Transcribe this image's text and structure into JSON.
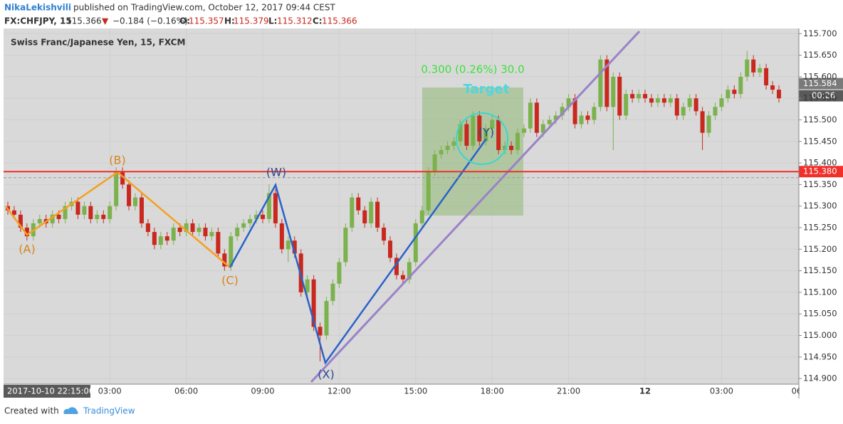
{
  "header": {
    "author": "NikaLekishvili",
    "published": "published on TradingView.com, October 12, 2017 09:44 CEST",
    "symbol": "FX:CHFJPY, 15",
    "last": "115.366",
    "arrow": "▼",
    "change": "−0.184 (−0.16%)",
    "open_label": "O:",
    "open": "115.357",
    "high_label": "H:",
    "high": "115.379",
    "low_label": "L:",
    "low": "115.312",
    "close_label": "C:",
    "close": "115.366"
  },
  "chart_data": {
    "type": "candlestick",
    "title": "Swiss Franc/Japanese Yen, 15, FXCM",
    "open": [
      115.3,
      115.29,
      115.28,
      115.25,
      115.23,
      115.26,
      115.27,
      115.26,
      115.28,
      115.27,
      115.3,
      115.31,
      115.28,
      115.3,
      115.27,
      115.28,
      115.27,
      115.3,
      115.38,
      115.35,
      115.3,
      115.32,
      115.26,
      115.24,
      115.21,
      115.23,
      115.22,
      115.25,
      115.24,
      115.26,
      115.24,
      115.25,
      115.23,
      115.24,
      115.19,
      115.16,
      115.23,
      115.25,
      115.26,
      115.27,
      115.28,
      115.27,
      115.33,
      115.26,
      115.2,
      115.22,
      115.19,
      115.1,
      115.13,
      115.02,
      115.0,
      115.08,
      115.12,
      115.17,
      115.25,
      115.32,
      115.29,
      115.26,
      115.31,
      115.25,
      115.22,
      115.18,
      115.14,
      115.13,
      115.17,
      115.26,
      115.29,
      115.38,
      115.42,
      115.43,
      115.44,
      115.45,
      115.49,
      115.44,
      115.51,
      115.45,
      115.48,
      115.5,
      115.43,
      115.44,
      115.43,
      115.47,
      115.48,
      115.54,
      115.47,
      115.49,
      115.5,
      115.51,
      115.53,
      115.55,
      115.49,
      115.51,
      115.5,
      115.53,
      115.64,
      115.53,
      115.6,
      115.51,
      115.56,
      115.55,
      115.56,
      115.55,
      115.54,
      115.55,
      115.54,
      115.55,
      115.51,
      115.53,
      115.55,
      115.52,
      115.47,
      115.51,
      115.53,
      115.55,
      115.57,
      115.56,
      115.6,
      115.64,
      115.61,
      115.62,
      115.58,
      115.57
    ],
    "high": [
      115.31,
      115.3,
      115.29,
      115.26,
      115.27,
      115.28,
      115.28,
      115.29,
      115.29,
      115.31,
      115.32,
      115.32,
      115.31,
      115.31,
      115.29,
      115.29,
      115.31,
      115.39,
      115.39,
      115.36,
      115.33,
      115.33,
      115.27,
      115.25,
      115.24,
      115.24,
      115.26,
      115.26,
      115.27,
      115.27,
      115.26,
      115.26,
      115.25,
      115.25,
      115.2,
      115.24,
      115.26,
      115.27,
      115.28,
      115.29,
      115.29,
      115.35,
      115.34,
      115.27,
      115.23,
      115.23,
      115.2,
      115.14,
      115.14,
      115.03,
      115.09,
      115.13,
      115.18,
      115.26,
      115.33,
      115.33,
      115.3,
      115.32,
      115.32,
      115.26,
      115.23,
      115.19,
      115.15,
      115.18,
      115.27,
      115.3,
      115.39,
      115.43,
      115.44,
      115.45,
      115.46,
      115.5,
      115.5,
      115.52,
      115.52,
      115.49,
      115.51,
      115.51,
      115.45,
      115.45,
      115.48,
      115.49,
      115.55,
      115.55,
      115.5,
      115.51,
      115.52,
      115.54,
      115.56,
      115.56,
      115.52,
      115.52,
      115.54,
      115.65,
      115.65,
      115.61,
      115.61,
      115.57,
      115.57,
      115.57,
      115.57,
      115.56,
      115.56,
      115.56,
      115.56,
      115.56,
      115.54,
      115.56,
      115.56,
      115.53,
      115.52,
      115.54,
      115.56,
      115.58,
      115.58,
      115.61,
      115.66,
      115.65,
      115.63,
      115.63,
      115.59,
      115.58
    ],
    "low": [
      115.28,
      115.27,
      115.24,
      115.22,
      115.22,
      115.25,
      115.25,
      115.25,
      115.26,
      115.26,
      115.29,
      115.27,
      115.27,
      115.26,
      115.26,
      115.26,
      115.26,
      115.29,
      115.34,
      115.29,
      115.29,
      115.25,
      115.23,
      115.2,
      115.2,
      115.21,
      115.21,
      115.23,
      115.23,
      115.23,
      115.23,
      115.22,
      115.22,
      115.18,
      115.15,
      115.15,
      115.22,
      115.24,
      115.25,
      115.26,
      115.26,
      115.26,
      115.25,
      115.19,
      115.17,
      115.18,
      115.09,
      115.09,
      115.01,
      114.94,
      114.99,
      115.07,
      115.11,
      115.16,
      115.24,
      115.28,
      115.25,
      115.25,
      115.24,
      115.21,
      115.17,
      115.13,
      115.12,
      115.12,
      115.16,
      115.25,
      115.28,
      115.37,
      115.41,
      115.42,
      115.43,
      115.44,
      115.43,
      115.43,
      115.44,
      115.44,
      115.47,
      115.42,
      115.42,
      115.42,
      115.42,
      115.46,
      115.47,
      115.46,
      115.46,
      115.48,
      115.49,
      115.5,
      115.52,
      115.48,
      115.48,
      115.49,
      115.49,
      115.52,
      115.52,
      115.43,
      115.5,
      115.5,
      115.54,
      115.54,
      115.54,
      115.53,
      115.53,
      115.53,
      115.53,
      115.5,
      115.5,
      115.52,
      115.51,
      115.43,
      115.46,
      115.5,
      115.52,
      115.54,
      115.55,
      115.55,
      115.59,
      115.6,
      115.6,
      115.57,
      115.56,
      115.54
    ],
    "close": [
      115.29,
      115.28,
      115.25,
      115.23,
      115.26,
      115.27,
      115.26,
      115.28,
      115.27,
      115.3,
      115.31,
      115.28,
      115.3,
      115.27,
      115.28,
      115.27,
      115.3,
      115.38,
      115.35,
      115.3,
      115.32,
      115.26,
      115.24,
      115.21,
      115.23,
      115.22,
      115.25,
      115.24,
      115.26,
      115.24,
      115.25,
      115.23,
      115.24,
      115.19,
      115.16,
      115.23,
      115.25,
      115.26,
      115.27,
      115.28,
      115.27,
      115.33,
      115.26,
      115.2,
      115.22,
      115.19,
      115.1,
      115.13,
      115.02,
      115.0,
      115.08,
      115.12,
      115.17,
      115.25,
      115.32,
      115.29,
      115.26,
      115.31,
      115.25,
      115.22,
      115.18,
      115.14,
      115.13,
      115.17,
      115.26,
      115.29,
      115.38,
      115.42,
      115.43,
      115.44,
      115.45,
      115.49,
      115.44,
      115.51,
      115.45,
      115.48,
      115.5,
      115.43,
      115.44,
      115.43,
      115.47,
      115.48,
      115.54,
      115.47,
      115.49,
      115.5,
      115.51,
      115.53,
      115.55,
      115.49,
      115.51,
      115.5,
      115.53,
      115.64,
      115.53,
      115.6,
      115.51,
      115.56,
      115.55,
      115.56,
      115.55,
      115.54,
      115.55,
      115.54,
      115.55,
      115.51,
      115.53,
      115.55,
      115.52,
      115.47,
      115.51,
      115.53,
      115.55,
      115.57,
      115.56,
      115.6,
      115.64,
      115.61,
      115.62,
      115.58,
      115.57,
      115.55
    ],
    "colors": {
      "up": "#7cb24e",
      "down": "#c8281e"
    },
    "xlim": [
      -0.67,
      124.13
    ],
    "ylim": [
      114.887,
      115.712
    ],
    "yticks": [
      {
        "value": 114.9,
        "label": "114.900"
      },
      {
        "value": 114.95,
        "label": "114.950"
      },
      {
        "value": 115.0,
        "label": "115.000"
      },
      {
        "value": 115.05,
        "label": "115.050"
      },
      {
        "value": 115.1,
        "label": "115.100"
      },
      {
        "value": 115.15,
        "label": "115.150"
      },
      {
        "value": 115.2,
        "label": "115.200"
      },
      {
        "value": 115.25,
        "label": "115.250"
      },
      {
        "value": 115.3,
        "label": "115.300"
      },
      {
        "value": 115.35,
        "label": "115.350"
      },
      {
        "value": 115.4,
        "label": "115.400"
      },
      {
        "value": 115.45,
        "label": "115.450"
      },
      {
        "value": 115.5,
        "label": "115.500"
      },
      {
        "value": 115.55,
        "label": "115.550"
      },
      {
        "value": 115.6,
        "label": "115.600"
      },
      {
        "value": 115.65,
        "label": "115.650"
      },
      {
        "value": 115.7,
        "label": "115.700"
      }
    ],
    "xticks": [
      {
        "value": 16,
        "label": "03:00"
      },
      {
        "value": 28,
        "label": "06:00"
      },
      {
        "value": 40,
        "label": "09:00"
      },
      {
        "value": 52,
        "label": "12:00"
      },
      {
        "value": 64,
        "label": "15:00"
      },
      {
        "value": 76,
        "label": "18:00"
      },
      {
        "value": 88,
        "label": "21:00"
      },
      {
        "value": 100,
        "label": "12"
      },
      {
        "value": 112,
        "label": "03:00"
      },
      {
        "value": 124,
        "label": "06:"
      }
    ],
    "crosshair_label": "2017-10-10 22:15:00",
    "price_line": {
      "value": 115.38,
      "label": "115.380",
      "color": "#f0302a"
    },
    "last_line": {
      "value": 115.366,
      "color": "#9a9a9a"
    },
    "price_badge": {
      "value": 115.584,
      "label": "115.584",
      "timer": "00:26"
    },
    "annotations": [
      {
        "text": "(A)",
        "color": "#d8841c"
      },
      {
        "text": "(B)",
        "color": "#d8841c"
      },
      {
        "text": "(C)",
        "color": "#d8841c"
      },
      {
        "text": "(W)",
        "color": "#2a4a90"
      },
      {
        "text": "(X)",
        "color": "#2a4a90"
      },
      {
        "text": "(Y)",
        "color": "#2a4a90"
      },
      {
        "text": "0.300 (0.26%) 30.0",
        "color": "#3ee03e"
      },
      {
        "text": "Target",
        "color": "#4fd6e0"
      }
    ]
  },
  "footer": {
    "created": "Created with",
    "brand": "TradingView"
  }
}
